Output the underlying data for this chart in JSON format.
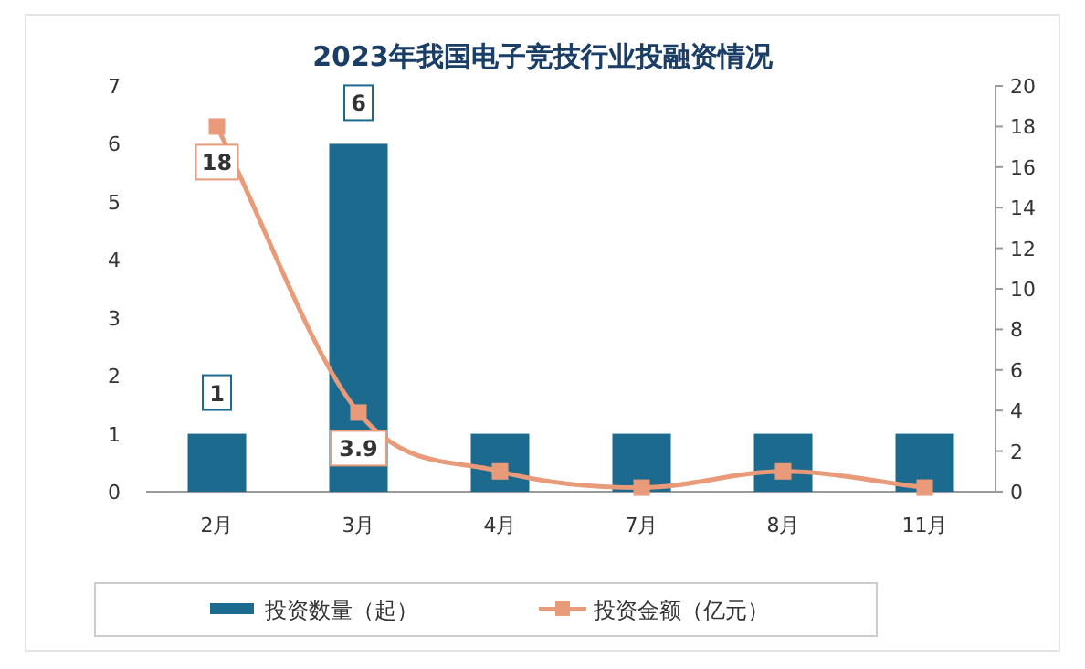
{
  "chart_data": {
    "type": "bar",
    "title": "2023年我国电子竞技行业投融资情况",
    "categories": [
      "2月",
      "3月",
      "4月",
      "7月",
      "8月",
      "11月"
    ],
    "series": [
      {
        "name": "投资数量（起）",
        "color": "#1c6a8e",
        "values": [
          1,
          6,
          1,
          1,
          1,
          1
        ],
        "value_labels": [
          "1",
          "6",
          null,
          null,
          null,
          null
        ]
      },
      {
        "name": "投资金额（亿元）",
        "type": "line",
        "axis": "y2",
        "color": "#e99a78",
        "marker": "square",
        "values": [
          18,
          3.9,
          1,
          0.2,
          1,
          0.2
        ],
        "value_labels": [
          "18",
          "3.9",
          null,
          null,
          null,
          null
        ]
      }
    ],
    "ylim": [
      0,
      7
    ],
    "yticks": [
      0,
      1,
      2,
      3,
      4,
      5,
      6,
      7
    ],
    "y2lim": [
      0,
      20
    ],
    "y2ticks": [
      0,
      2,
      4,
      6,
      8,
      10,
      12,
      14,
      16,
      18,
      20
    ],
    "legend": "bottom"
  }
}
